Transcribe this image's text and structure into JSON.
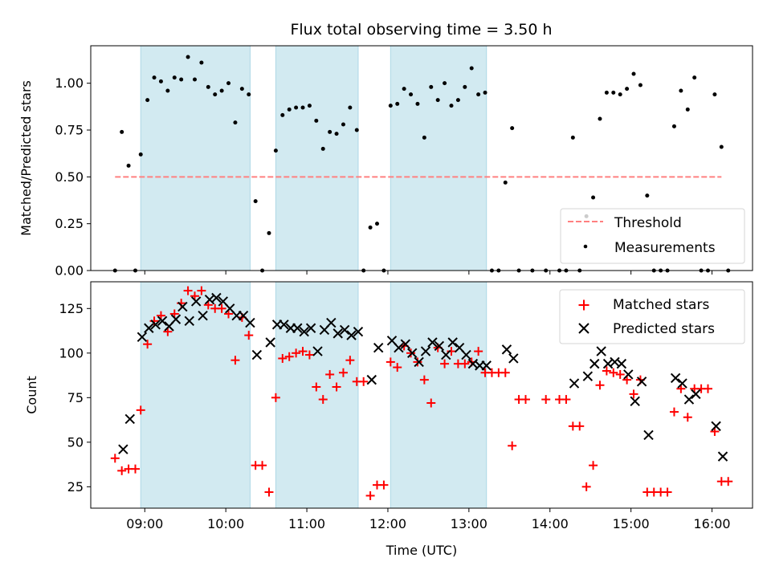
{
  "figure": {
    "title": "Flux total observing time = 3.50 h",
    "xlabel": "Time (UTC)"
  },
  "chart_data": [
    {
      "type": "scatter",
      "ylabel": "Matched/Predicted stars",
      "xlim": [
        "08:20",
        "16:30"
      ],
      "ylim": [
        0,
        1.2
      ],
      "yticks": [
        0,
        0.25,
        0.5,
        0.75,
        1.0
      ],
      "ytick_labels": [
        "0.00",
        "0.25",
        "0.50",
        "0.75",
        "1.00"
      ],
      "grid": false,
      "legend": "lower-right",
      "shaded_spans": [
        [
          "08:57",
          "10:18"
        ],
        [
          "10:37",
          "11:38"
        ],
        [
          "12:02",
          "13:13"
        ]
      ],
      "shade_color": "#add8e6",
      "threshold": {
        "name": "Threshold",
        "y": 0.5,
        "x": [
          "08:38",
          "16:07"
        ],
        "color": "#ff8080"
      },
      "series": [
        {
          "name": "Measurements",
          "color": "#000000",
          "points": [
            [
              "08:38",
              0.0
            ],
            [
              "08:43",
              0.74
            ],
            [
              "08:48",
              0.56
            ],
            [
              "08:53",
              0.0
            ],
            [
              "08:57",
              0.62
            ],
            [
              "09:02",
              0.91
            ],
            [
              "09:07",
              1.03
            ],
            [
              "09:12",
              1.01
            ],
            [
              "09:17",
              0.96
            ],
            [
              "09:22",
              1.03
            ],
            [
              "09:27",
              1.02
            ],
            [
              "09:32",
              1.14
            ],
            [
              "09:37",
              1.02
            ],
            [
              "09:42",
              1.11
            ],
            [
              "09:47",
              0.98
            ],
            [
              "09:52",
              0.94
            ],
            [
              "09:57",
              0.96
            ],
            [
              "10:02",
              1.0
            ],
            [
              "10:07",
              0.79
            ],
            [
              "10:12",
              0.97
            ],
            [
              "10:17",
              0.94
            ],
            [
              "10:22",
              0.37
            ],
            [
              "10:27",
              0.0
            ],
            [
              "10:32",
              0.2
            ],
            [
              "10:37",
              0.64
            ],
            [
              "10:42",
              0.83
            ],
            [
              "10:47",
              0.86
            ],
            [
              "10:52",
              0.87
            ],
            [
              "10:57",
              0.87
            ],
            [
              "11:02",
              0.88
            ],
            [
              "11:07",
              0.8
            ],
            [
              "11:12",
              0.65
            ],
            [
              "11:17",
              0.74
            ],
            [
              "11:22",
              0.73
            ],
            [
              "11:27",
              0.78
            ],
            [
              "11:32",
              0.87
            ],
            [
              "11:37",
              0.75
            ],
            [
              "11:42",
              0.0
            ],
            [
              "11:47",
              0.23
            ],
            [
              "11:52",
              0.25
            ],
            [
              "11:57",
              0.0
            ],
            [
              "12:02",
              0.88
            ],
            [
              "12:07",
              0.89
            ],
            [
              "12:12",
              0.97
            ],
            [
              "12:17",
              0.94
            ],
            [
              "12:22",
              0.89
            ],
            [
              "12:27",
              0.71
            ],
            [
              "12:32",
              0.98
            ],
            [
              "12:37",
              0.91
            ],
            [
              "12:42",
              1.0
            ],
            [
              "12:47",
              0.88
            ],
            [
              "12:52",
              0.91
            ],
            [
              "12:57",
              0.98
            ],
            [
              "13:02",
              1.08
            ],
            [
              "13:07",
              0.94
            ],
            [
              "13:12",
              0.95
            ],
            [
              "13:17",
              0.0
            ],
            [
              "13:22",
              0.0
            ],
            [
              "13:27",
              0.47
            ],
            [
              "13:32",
              0.76
            ],
            [
              "13:37",
              0.0
            ],
            [
              "13:47",
              0.0
            ],
            [
              "13:57",
              0.0
            ],
            [
              "14:07",
              0.0
            ],
            [
              "14:12",
              0.0
            ],
            [
              "14:17",
              0.71
            ],
            [
              "14:22",
              0.0
            ],
            [
              "14:27",
              0.29
            ],
            [
              "14:32",
              0.39
            ],
            [
              "14:37",
              0.81
            ],
            [
              "14:42",
              0.95
            ],
            [
              "14:47",
              0.95
            ],
            [
              "14:52",
              0.94
            ],
            [
              "14:57",
              0.97
            ],
            [
              "15:02",
              1.05
            ],
            [
              "15:07",
              0.99
            ],
            [
              "15:12",
              0.4
            ],
            [
              "15:17",
              0.0
            ],
            [
              "15:22",
              0.0
            ],
            [
              "15:27",
              0.0
            ],
            [
              "15:32",
              0.77
            ],
            [
              "15:37",
              0.96
            ],
            [
              "15:42",
              0.86
            ],
            [
              "15:47",
              1.03
            ],
            [
              "15:52",
              0.0
            ],
            [
              "15:57",
              0.0
            ],
            [
              "16:02",
              0.94
            ],
            [
              "16:07",
              0.66
            ],
            [
              "16:12",
              0.0
            ]
          ]
        }
      ]
    },
    {
      "type": "scatter",
      "ylabel": "Count",
      "xlim": [
        "08:20",
        "16:30"
      ],
      "ylim": [
        13,
        140
      ],
      "yticks": [
        25,
        50,
        75,
        100,
        125
      ],
      "ytick_labels": [
        "25",
        "50",
        "75",
        "100",
        "125"
      ],
      "xticks": [
        "09:00",
        "10:00",
        "11:00",
        "12:00",
        "13:00",
        "14:00",
        "15:00",
        "16:00"
      ],
      "xtick_labels": [
        "09:00",
        "10:00",
        "11:00",
        "12:00",
        "13:00",
        "14:00",
        "15:00",
        "16:00"
      ],
      "grid": false,
      "legend": "upper-right",
      "shaded_spans": [
        [
          "08:57",
          "10:18"
        ],
        [
          "10:37",
          "11:38"
        ],
        [
          "12:02",
          "13:13"
        ]
      ],
      "shade_color": "#add8e6",
      "series": [
        {
          "name": "Matched stars",
          "marker": "plus",
          "color": "#ff0000",
          "points": [
            [
              "08:38",
              41
            ],
            [
              "08:43",
              34
            ],
            [
              "08:48",
              35
            ],
            [
              "08:53",
              35
            ],
            [
              "08:57",
              68
            ],
            [
              "09:02",
              105
            ],
            [
              "09:07",
              118
            ],
            [
              "09:12",
              121
            ],
            [
              "09:17",
              112
            ],
            [
              "09:22",
              122
            ],
            [
              "09:27",
              128
            ],
            [
              "09:32",
              135
            ],
            [
              "09:37",
              132
            ],
            [
              "09:42",
              135
            ],
            [
              "09:47",
              127
            ],
            [
              "09:52",
              125
            ],
            [
              "09:57",
              125
            ],
            [
              "10:02",
              122
            ],
            [
              "10:07",
              96
            ],
            [
              "10:12",
              120
            ],
            [
              "10:17",
              110
            ],
            [
              "10:22",
              37
            ],
            [
              "10:27",
              37
            ],
            [
              "10:32",
              22
            ],
            [
              "10:37",
              75
            ],
            [
              "10:42",
              97
            ],
            [
              "10:47",
              98
            ],
            [
              "10:52",
              100
            ],
            [
              "10:57",
              101
            ],
            [
              "11:02",
              99
            ],
            [
              "11:07",
              81
            ],
            [
              "11:12",
              74
            ],
            [
              "11:17",
              88
            ],
            [
              "11:22",
              81
            ],
            [
              "11:27",
              89
            ],
            [
              "11:32",
              96
            ],
            [
              "11:37",
              84
            ],
            [
              "11:42",
              84
            ],
            [
              "11:47",
              20
            ],
            [
              "11:52",
              26
            ],
            [
              "11:57",
              26
            ],
            [
              "12:02",
              95
            ],
            [
              "12:07",
              92
            ],
            [
              "12:12",
              104
            ],
            [
              "12:17",
              100
            ],
            [
              "12:22",
              95
            ],
            [
              "12:27",
              85
            ],
            [
              "12:32",
              72
            ],
            [
              "12:37",
              103
            ],
            [
              "12:42",
              94
            ],
            [
              "12:47",
              101
            ],
            [
              "12:52",
              94
            ],
            [
              "12:57",
              94
            ],
            [
              "13:02",
              95
            ],
            [
              "13:07",
              101
            ],
            [
              "13:12",
              89
            ],
            [
              "13:17",
              89
            ],
            [
              "13:22",
              89
            ],
            [
              "13:27",
              89
            ],
            [
              "13:32",
              48
            ],
            [
              "13:37",
              74
            ],
            [
              "13:42",
              74
            ],
            [
              "13:57",
              74
            ],
            [
              "14:07",
              74
            ],
            [
              "14:12",
              74
            ],
            [
              "14:17",
              59
            ],
            [
              "14:22",
              59
            ],
            [
              "14:27",
              25
            ],
            [
              "14:32",
              37
            ],
            [
              "14:37",
              82
            ],
            [
              "14:42",
              90
            ],
            [
              "14:47",
              89
            ],
            [
              "14:52",
              88
            ],
            [
              "14:57",
              85
            ],
            [
              "15:02",
              77
            ],
            [
              "15:07",
              85
            ],
            [
              "15:12",
              22
            ],
            [
              "15:17",
              22
            ],
            [
              "15:22",
              22
            ],
            [
              "15:27",
              22
            ],
            [
              "15:32",
              67
            ],
            [
              "15:37",
              80
            ],
            [
              "15:42",
              64
            ],
            [
              "15:47",
              80
            ],
            [
              "15:52",
              80
            ],
            [
              "15:57",
              80
            ],
            [
              "16:02",
              56
            ],
            [
              "16:07",
              28
            ],
            [
              "16:12",
              28
            ]
          ]
        },
        {
          "name": "Predicted stars",
          "marker": "x",
          "color": "#000000",
          "points": [
            [
              "08:44",
              46
            ],
            [
              "08:49",
              63
            ],
            [
              "08:58",
              109
            ],
            [
              "09:03",
              114
            ],
            [
              "09:08",
              116
            ],
            [
              "09:13",
              118
            ],
            [
              "09:18",
              115
            ],
            [
              "09:23",
              119
            ],
            [
              "09:28",
              126
            ],
            [
              "09:33",
              118
            ],
            [
              "09:38",
              129
            ],
            [
              "09:43",
              121
            ],
            [
              "09:48",
              130
            ],
            [
              "09:53",
              131
            ],
            [
              "09:58",
              129
            ],
            [
              "10:03",
              125
            ],
            [
              "10:08",
              121
            ],
            [
              "10:13",
              121
            ],
            [
              "10:18",
              117
            ],
            [
              "10:23",
              99
            ],
            [
              "10:33",
              106
            ],
            [
              "10:38",
              116
            ],
            [
              "10:43",
              116
            ],
            [
              "10:48",
              114
            ],
            [
              "10:53",
              114
            ],
            [
              "10:58",
              112
            ],
            [
              "11:03",
              114
            ],
            [
              "11:08",
              101
            ],
            [
              "11:13",
              113
            ],
            [
              "11:18",
              117
            ],
            [
              "11:23",
              111
            ],
            [
              "11:28",
              113
            ],
            [
              "11:33",
              110
            ],
            [
              "11:38",
              112
            ],
            [
              "11:48",
              85
            ],
            [
              "11:53",
              103
            ],
            [
              "12:03",
              107
            ],
            [
              "12:08",
              103
            ],
            [
              "12:13",
              105
            ],
            [
              "12:18",
              100
            ],
            [
              "12:23",
              95
            ],
            [
              "12:28",
              101
            ],
            [
              "12:33",
              106
            ],
            [
              "12:38",
              104
            ],
            [
              "12:43",
              99
            ],
            [
              "12:48",
              106
            ],
            [
              "12:53",
              103
            ],
            [
              "12:58",
              99
            ],
            [
              "13:03",
              94
            ],
            [
              "13:08",
              93
            ],
            [
              "13:13",
              93
            ],
            [
              "13:28",
              102
            ],
            [
              "13:33",
              97
            ],
            [
              "14:18",
              83
            ],
            [
              "14:28",
              87
            ],
            [
              "14:33",
              94
            ],
            [
              "14:38",
              101
            ],
            [
              "14:43",
              94
            ],
            [
              "14:48",
              95
            ],
            [
              "14:53",
              94
            ],
            [
              "14:58",
              88
            ],
            [
              "15:03",
              73
            ],
            [
              "15:08",
              84
            ],
            [
              "15:13",
              54
            ],
            [
              "15:33",
              86
            ],
            [
              "15:38",
              83
            ],
            [
              "15:43",
              74
            ],
            [
              "15:48",
              77
            ],
            [
              "16:03",
              59
            ],
            [
              "16:08",
              42
            ]
          ]
        }
      ]
    }
  ]
}
